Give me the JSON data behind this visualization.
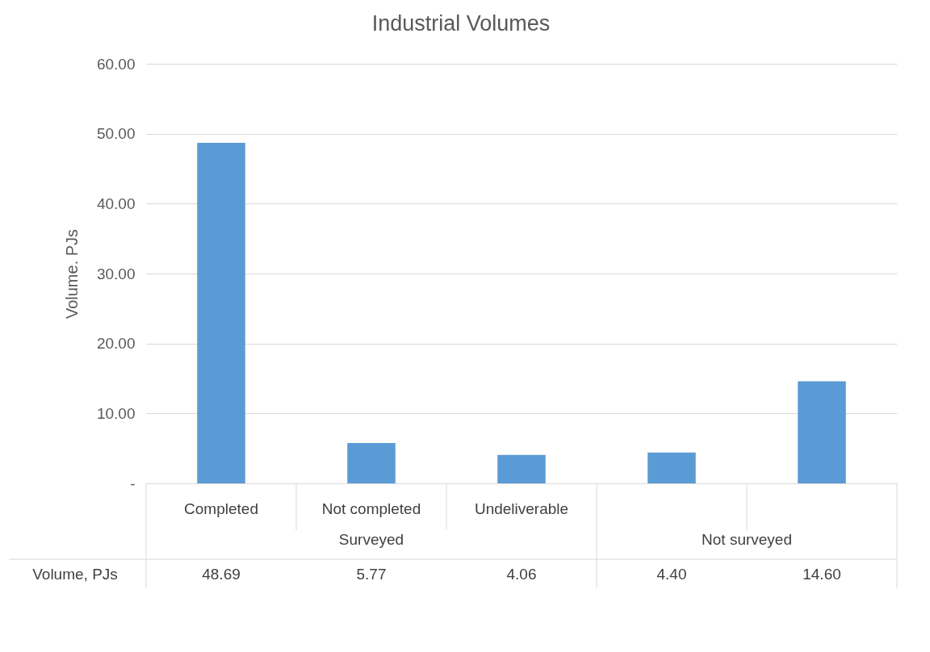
{
  "chart_data": {
    "type": "bar",
    "title": "Industrial Volumes",
    "ylabel": "Volume. PJs",
    "categories": [
      "Completed",
      "Not completed",
      "Undeliverable",
      null,
      null
    ],
    "series": [
      {
        "name": "Volume, PJs",
        "color": "#5b9bd5",
        "values": [
          48.69,
          5.77,
          4.06,
          4.4,
          14.6
        ],
        "value_labels": [
          "48.69",
          "5.77",
          "4.06",
          "4.40",
          "14.60"
        ]
      }
    ],
    "ylim": [
      0,
      60
    ],
    "yticks": [
      {
        "value": 0,
        "label": "-"
      },
      {
        "value": 10,
        "label": "10.00"
      },
      {
        "value": 20,
        "label": "20.00"
      },
      {
        "value": 30,
        "label": "30.00"
      },
      {
        "value": 40,
        "label": "40.00"
      },
      {
        "value": 50,
        "label": "50.00"
      },
      {
        "value": 60,
        "label": "60.00"
      }
    ],
    "grid": "y",
    "annotations": [
      "Surveyed",
      "Not surveyed"
    ]
  }
}
